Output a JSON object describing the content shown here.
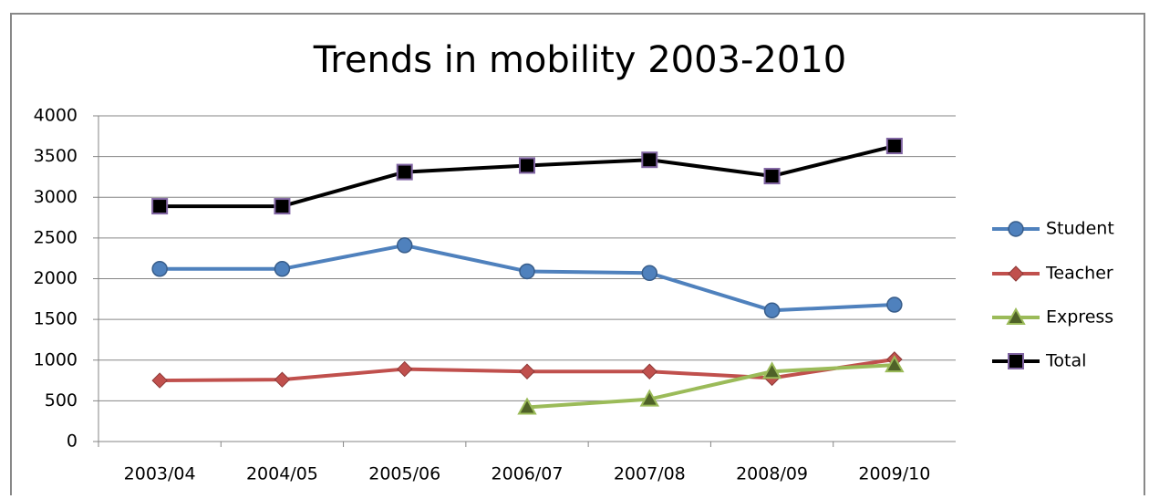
{
  "chart_data": {
    "type": "line",
    "title": "Trends in mobility 2003-2010",
    "categories": [
      "2003/04",
      "2004/05",
      "2005/06",
      "2006/07",
      "2007/08",
      "2008/09",
      "2009/10"
    ],
    "series": [
      {
        "name": "Student",
        "color": "#4f81bd",
        "marker": "circle",
        "values": [
          2120,
          2120,
          2410,
          2090,
          2070,
          1610,
          1680
        ]
      },
      {
        "name": "Teacher",
        "color": "#c0504d",
        "marker": "diamond",
        "values": [
          750,
          760,
          890,
          860,
          860,
          780,
          1010
        ]
      },
      {
        "name": "Express",
        "color": "#9bbb59",
        "marker": "triangle",
        "values": [
          null,
          null,
          null,
          420,
          520,
          860,
          940
        ]
      },
      {
        "name": "Total",
        "color": "#000000",
        "marker": "square",
        "values": [
          2890,
          2890,
          3310,
          3390,
          3460,
          3260,
          3630
        ]
      }
    ],
    "ylim": [
      0,
      4000
    ],
    "yticks": [
      0,
      500,
      1000,
      1500,
      2000,
      2500,
      3000,
      3500,
      4000
    ],
    "grid": true,
    "legend": "right"
  }
}
